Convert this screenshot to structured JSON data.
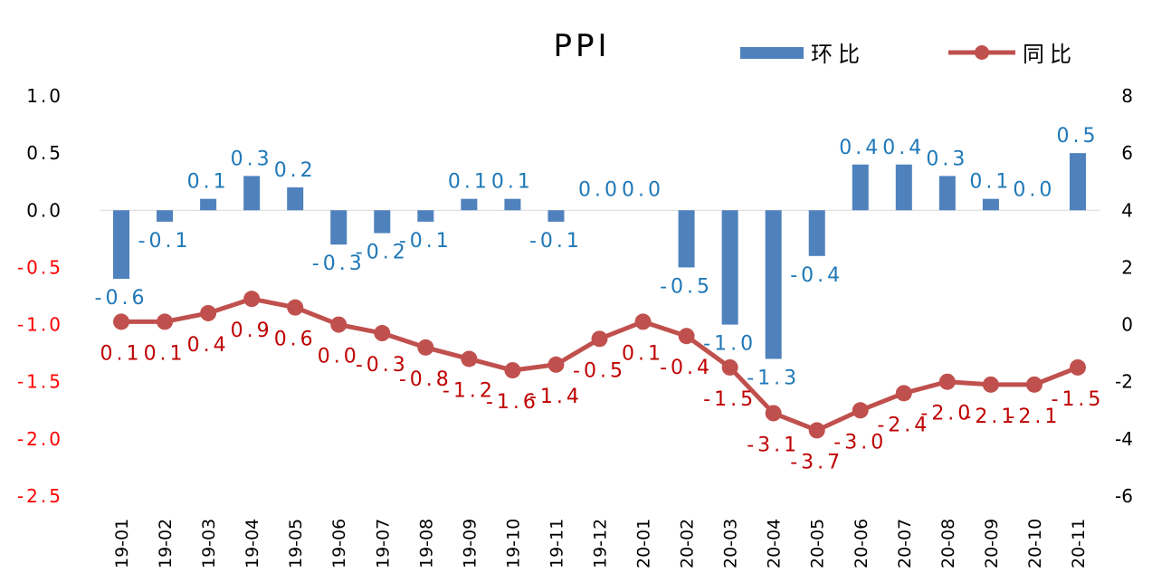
{
  "chart_data": {
    "type": "bar+line",
    "title": "PPI",
    "categories": [
      "19-01",
      "19-02",
      "19-03",
      "19-04",
      "19-05",
      "19-06",
      "19-07",
      "19-08",
      "19-09",
      "19-10",
      "19-11",
      "19-12",
      "20-01",
      "20-02",
      "20-03",
      "20-04",
      "20-05",
      "20-06",
      "20-07",
      "20-08",
      "20-09",
      "20-10",
      "20-11"
    ],
    "series": [
      {
        "name": "环比",
        "type": "bar",
        "axis": "left",
        "color": "#4f81bd",
        "values": [
          -0.6,
          -0.1,
          0.1,
          0.3,
          0.2,
          -0.3,
          -0.2,
          -0.1,
          0.1,
          0.1,
          -0.1,
          0.0,
          0.0,
          -0.5,
          -1.0,
          -1.3,
          -0.4,
          0.4,
          0.4,
          0.3,
          0.1,
          0.0,
          0.5
        ],
        "labels": [
          "-0.6",
          "-0.1",
          "0.1",
          "0.3",
          "0.2",
          "-0.3",
          "-0.2",
          "-0.1",
          "0.1",
          "0.1",
          "-0.1",
          "0.0",
          "0.0",
          "-0.5",
          "-1.0",
          "-1.3",
          "-0.4",
          "0.4",
          "0.4",
          "0.3",
          "0.1",
          "0.0",
          "0.5"
        ]
      },
      {
        "name": "同比",
        "type": "line",
        "axis": "right",
        "color": "#c0504d",
        "values": [
          0.1,
          0.1,
          0.4,
          0.9,
          0.6,
          0.0,
          -0.3,
          -0.8,
          -1.2,
          -1.6,
          -1.4,
          -0.5,
          0.1,
          -0.4,
          -1.5,
          -3.1,
          -3.7,
          -3.0,
          -2.4,
          -2.0,
          -2.1,
          -2.1,
          -1.5
        ],
        "labels": [
          "0.1",
          "0.1",
          "0.4",
          "0.9",
          "0.6",
          "0.0",
          "-0.3",
          "-0.8",
          "-1.2",
          "-1.6",
          "-1.4",
          "-0.5",
          "0.1",
          "-0.4",
          "-1.5",
          "-3.1",
          "-3.7",
          "-3.0",
          "-2.4",
          "-2.0",
          "-2.1",
          "-2.1",
          "-1.5"
        ]
      }
    ],
    "y_left": {
      "ylim": [
        -2.5,
        1.0
      ],
      "ticks": [
        1.0,
        0.5,
        0.0,
        -0.5,
        -1.0,
        -1.5,
        -2.0,
        -2.5
      ],
      "tick_labels": [
        "1.0",
        "0.5",
        "0.0",
        "-0.5",
        "-1.0",
        "-1.5",
        "-2.0",
        "-2.5"
      ],
      "positive_color": "#000000",
      "negative_color": "#ff0000"
    },
    "y_right": {
      "ylim": [
        -6,
        8
      ],
      "ticks": [
        8,
        6,
        4,
        2,
        0,
        -2,
        -4,
        -6
      ],
      "tick_labels": [
        "8",
        "6",
        "4",
        "2",
        "0",
        "-2",
        "-4",
        "-6"
      ]
    },
    "grid": false,
    "legend_position": "top-right"
  }
}
